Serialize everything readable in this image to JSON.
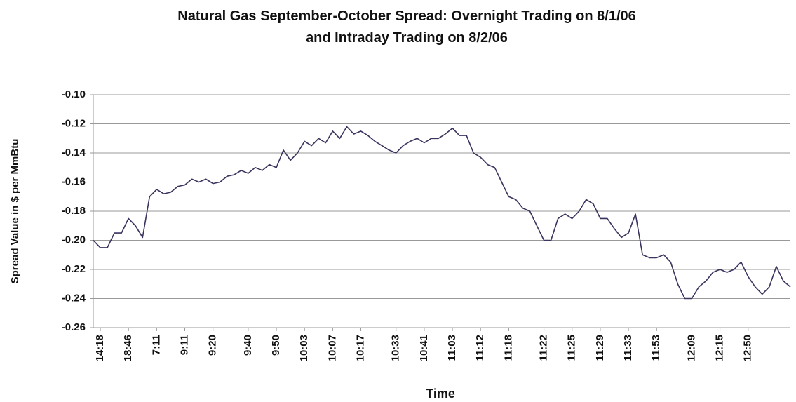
{
  "chart_data": {
    "type": "line",
    "title": [
      "Natural Gas September-October Spread:  Overnight Trading on 8/1/06",
      "and Intraday Trading on 8/2/06"
    ],
    "x_label": "Time",
    "y_label": "Spread Value in $ per MmBtu",
    "color": "#3a345e",
    "grid": true,
    "ylim": [
      -0.26,
      -0.1
    ],
    "yticks": [
      -0.26,
      -0.24,
      -0.22,
      {
        "value": -0.2,
        "label": "-0.20"
      },
      -0.18,
      -0.16,
      -0.14,
      -0.12,
      {
        "value": -0.1,
        "label": "-0.10"
      }
    ],
    "categories": [
      null,
      "14:18",
      null,
      null,
      null,
      "18:46",
      null,
      null,
      null,
      "7:11",
      null,
      null,
      null,
      "9:11",
      null,
      null,
      null,
      "9:20",
      null,
      null,
      null,
      null,
      "9:40",
      null,
      null,
      null,
      "9:50",
      null,
      null,
      null,
      "10:03",
      null,
      null,
      null,
      "10:07",
      null,
      null,
      null,
      "10:17",
      null,
      null,
      null,
      null,
      "10:33",
      null,
      null,
      null,
      "10:41",
      null,
      null,
      null,
      "11:03",
      null,
      null,
      null,
      "11:12",
      null,
      null,
      null,
      "11:18",
      null,
      null,
      null,
      null,
      "11:22",
      null,
      null,
      null,
      "11:25",
      null,
      null,
      null,
      "11:29",
      null,
      null,
      null,
      "11:33",
      null,
      null,
      null,
      "11:53",
      null,
      null,
      null,
      null,
      "12:09",
      null,
      null,
      null,
      "12:15",
      null,
      null,
      null,
      "12:50",
      null,
      null,
      null,
      null,
      null,
      null
    ],
    "values": [
      -0.2,
      -0.205,
      -0.205,
      -0.195,
      -0.195,
      -0.185,
      -0.19,
      -0.198,
      -0.17,
      -0.165,
      -0.168,
      -0.167,
      -0.163,
      -0.162,
      -0.158,
      -0.16,
      -0.158,
      -0.161,
      -0.16,
      -0.156,
      -0.155,
      -0.152,
      -0.154,
      -0.15,
      -0.152,
      -0.148,
      -0.15,
      -0.138,
      -0.145,
      -0.14,
      -0.132,
      -0.135,
      -0.13,
      -0.133,
      -0.125,
      -0.13,
      -0.122,
      -0.127,
      -0.125,
      -0.128,
      -0.132,
      -0.135,
      -0.138,
      -0.14,
      -0.135,
      -0.132,
      -0.13,
      -0.133,
      -0.13,
      -0.13,
      -0.127,
      -0.123,
      -0.128,
      -0.128,
      -0.14,
      -0.143,
      -0.148,
      -0.15,
      -0.16,
      -0.17,
      -0.172,
      -0.178,
      -0.18,
      -0.19,
      -0.2,
      -0.2,
      -0.185,
      -0.182,
      -0.185,
      -0.18,
      -0.172,
      -0.175,
      -0.185,
      -0.185,
      -0.192,
      -0.198,
      -0.195,
      -0.182,
      -0.21,
      -0.212,
      -0.212,
      -0.21,
      -0.215,
      -0.23,
      -0.24,
      -0.24,
      -0.232,
      -0.228,
      -0.222,
      -0.22,
      -0.222,
      -0.22,
      -0.215,
      -0.225,
      -0.232,
      -0.237,
      -0.232,
      -0.218,
      -0.228,
      -0.232
    ]
  }
}
